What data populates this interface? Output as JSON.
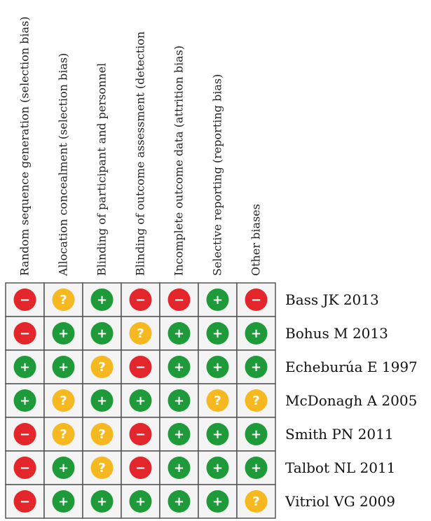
{
  "figure": {
    "columns": [
      "Random sequence generation (selection bias)",
      "Allocation concealment (selection bias)",
      "Blinding of participant and personnel",
      "Blinding of outcome assessment (detection",
      "Incomplete outcome data (attrition bias)",
      "Selective reporting (reporting bias)",
      "Other biases"
    ],
    "rows": [
      {
        "study": "Bass JK 2013",
        "ratings": [
          "high",
          "unclear",
          "low",
          "high",
          "high",
          "low",
          "high"
        ]
      },
      {
        "study": "Bohus M 2013",
        "ratings": [
          "high",
          "low",
          "low",
          "unclear",
          "low",
          "low",
          "low"
        ]
      },
      {
        "study": "Echeburúa E 1997",
        "ratings": [
          "low",
          "low",
          "unclear",
          "high",
          "low",
          "low",
          "low"
        ]
      },
      {
        "study": "McDonagh A 2005",
        "ratings": [
          "low",
          "unclear",
          "low",
          "low",
          "low",
          "unclear",
          "unclear"
        ]
      },
      {
        "study": "Smith PN 2011",
        "ratings": [
          "high",
          "unclear",
          "unclear",
          "high",
          "low",
          "low",
          "low"
        ]
      },
      {
        "study": "Talbot NL 2011",
        "ratings": [
          "high",
          "low",
          "unclear",
          "high",
          "low",
          "low",
          "low"
        ]
      },
      {
        "study": "Vitriol VG 2009",
        "ratings": [
          "high",
          "low",
          "low",
          "low",
          "low",
          "low",
          "unclear"
        ]
      }
    ],
    "rating_styles": {
      "low": {
        "symbol": "+",
        "color": "#1f9a3a",
        "icon": "low-risk-icon"
      },
      "unclear": {
        "symbol": "?",
        "color": "#f5b820",
        "icon": "unclear-risk-icon"
      },
      "high": {
        "symbol": "−",
        "color": "#e2262b",
        "icon": "high-risk-icon"
      }
    }
  }
}
